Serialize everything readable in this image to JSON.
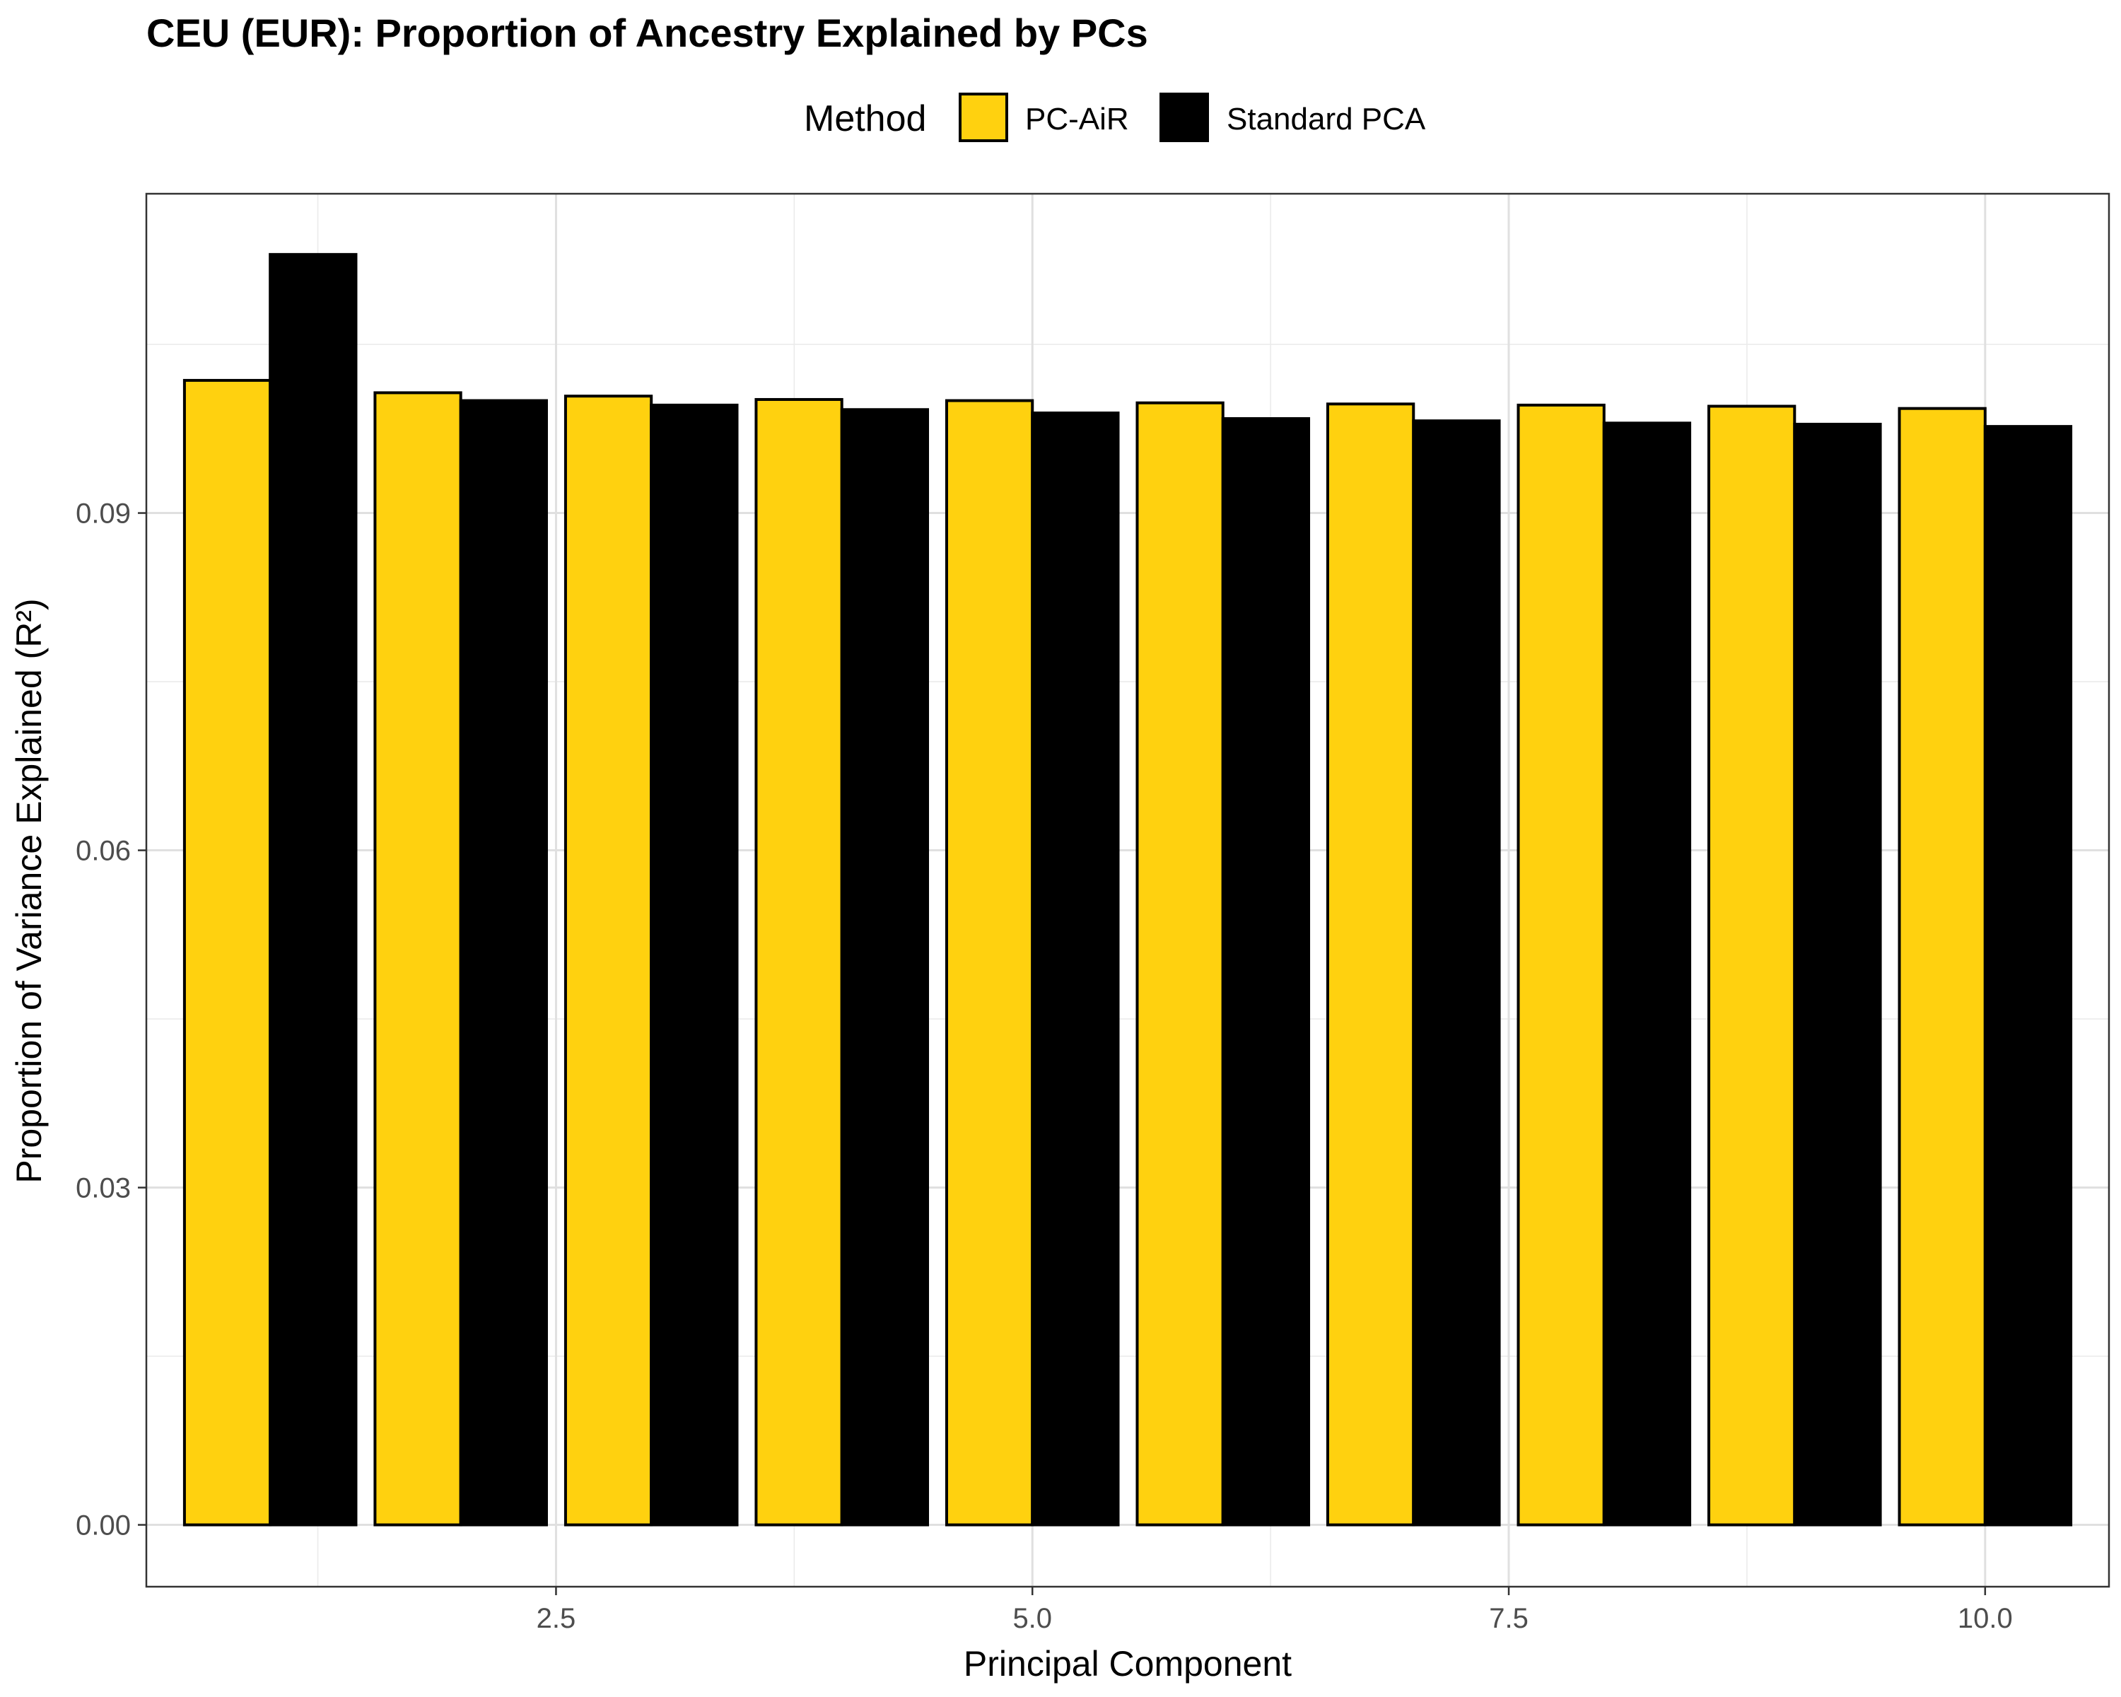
{
  "chart_data": {
    "type": "bar",
    "title": "CEU (EUR): Proportion of Ancestry Explained by PCs",
    "xlabel": "Principal Component",
    "ylabel": "Proportion of Variance Explained (R²)",
    "x": [
      1,
      2,
      3,
      4,
      5,
      6,
      7,
      8,
      9,
      10
    ],
    "xlim": [
      0.35,
      10.65
    ],
    "ylim": [
      -0.0055,
      0.1184
    ],
    "x_ticks": [
      2.5,
      5.0,
      7.5,
      10.0
    ],
    "x_tick_labels": [
      "2.5",
      "5.0",
      "7.5",
      "10.0"
    ],
    "y_ticks": [
      0.0,
      0.03,
      0.06,
      0.09
    ],
    "y_tick_labels": [
      "0.00",
      "0.03",
      "0.06",
      "0.09"
    ],
    "grid": true,
    "legend": {
      "title": "Method",
      "position": "top"
    },
    "series": [
      {
        "name": "PC-AiR",
        "color": "#FFD10F",
        "values": [
          0.1018,
          0.1007,
          0.1004,
          0.1001,
          0.1,
          0.0998,
          0.0997,
          0.0996,
          0.0995,
          0.0993
        ]
      },
      {
        "name": "Standard PCA",
        "color": "#000000",
        "values": [
          0.113,
          0.1,
          0.0996,
          0.0992,
          0.0989,
          0.0984,
          0.0982,
          0.098,
          0.0979,
          0.0977
        ]
      }
    ]
  }
}
